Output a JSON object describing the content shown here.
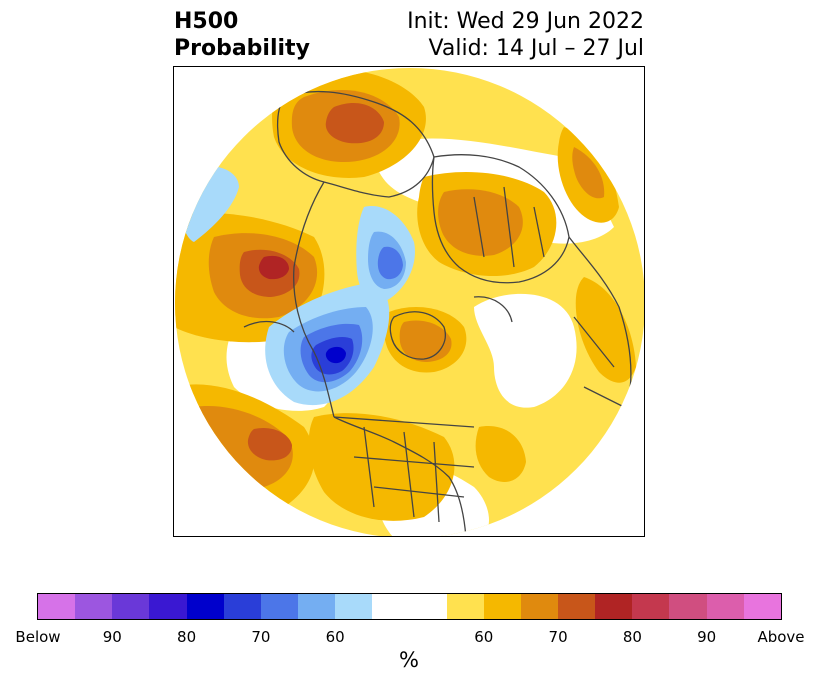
{
  "title": {
    "line1_left": "H500",
    "line2_left": "Probability",
    "line1_right": "Init: Wed 29 Jun 2022",
    "line2_right": "Valid: 14 Jul – 27 Jul"
  },
  "colorbar": {
    "unit": "%",
    "colors": [
      "#d672e8",
      "#9c56e0",
      "#6a38d8",
      "#3a18d2",
      "#0000cc",
      "#2a3ed8",
      "#4c76e8",
      "#74aef2",
      "#a8dafa",
      "#ffffff",
      "#ffe14f",
      "#f5b800",
      "#e08a0e",
      "#c8561a",
      "#b02424",
      "#c4384e",
      "#d04e80",
      "#dc5eac",
      "#e874de"
    ],
    "tick_labels": [
      "Below",
      "90",
      "80",
      "70",
      "60",
      "60",
      "70",
      "80",
      "90",
      "Above"
    ]
  }
}
